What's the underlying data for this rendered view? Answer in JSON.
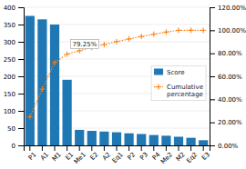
{
  "chart_data": {
    "type": "bar",
    "categories": [
      "P1",
      "A1",
      "M1",
      "E1",
      "Me1",
      "E2",
      "A2",
      "Eq1",
      "P2",
      "P3",
      "P4",
      "Me2",
      "M2",
      "Eq2",
      "E3"
    ],
    "series": [
      {
        "name": "Score",
        "type": "bar",
        "values": [
          375,
          365,
          350,
          190,
          45,
          42,
          40,
          38,
          35,
          33,
          30,
          28,
          25,
          22,
          15
        ]
      },
      {
        "name": "Cumulative\npercentage",
        "type": "line",
        "axis": "y2",
        "marker": "plus",
        "line_style": "dotted",
        "values": [
          24.75,
          48.84,
          71.97,
          79.25,
          82.22,
          85.0,
          87.64,
          90.15,
          92.46,
          94.64,
          96.62,
          98.47,
          100.0,
          100.0,
          100.0
        ]
      }
    ],
    "ylim": [
      0,
      400
    ],
    "yticks": [
      0,
      50,
      100,
      150,
      200,
      250,
      300,
      350,
      400
    ],
    "y2lim": [
      0,
      120
    ],
    "y2ticks": [
      {
        "value": 0,
        "label": "0.00%"
      },
      {
        "value": 20,
        "label": "20.00%"
      },
      {
        "value": 40,
        "label": "40.00%"
      },
      {
        "value": 60,
        "label": "60.00%"
      },
      {
        "value": 80,
        "label": "80.00%"
      },
      {
        "value": 100,
        "label": "100.00%"
      },
      {
        "value": 120,
        "label": "120.00%"
      }
    ],
    "grid": true,
    "legend": "right",
    "annotations": [
      {
        "text": "79.25%",
        "x": "E1",
        "y": 79.25,
        "axis": "y2"
      }
    ]
  }
}
